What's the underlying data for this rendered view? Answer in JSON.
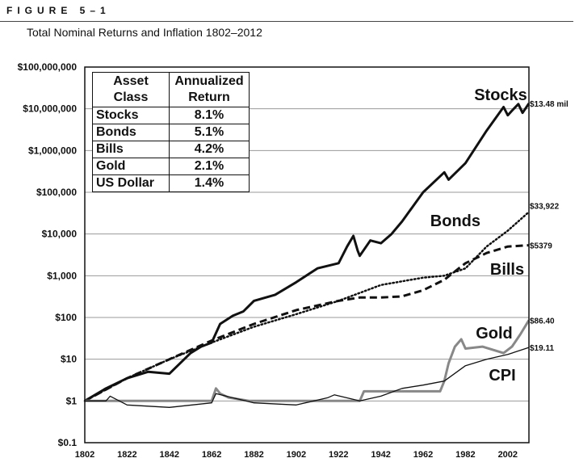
{
  "figure_label": "FIGURE 5–1",
  "figure_title": "Total Nominal Returns and Inflation 1802–2012",
  "chart_data": {
    "type": "line",
    "title": "Total Nominal Returns and Inflation 1802–2012",
    "yscale": "log",
    "ylim": [
      0.1,
      100000000
    ],
    "xlim": [
      1802,
      2012
    ],
    "ytick_values": [
      0.1,
      1,
      10,
      100,
      1000,
      10000,
      100000,
      1000000,
      10000000,
      100000000
    ],
    "ytick_labels": [
      "$0.1",
      "$1",
      "$10",
      "$100",
      "$1,000",
      "$10,000",
      "$100,000",
      "$1,000,000",
      "$10,000,000",
      "$100,000,000"
    ],
    "xtick_values": [
      1802,
      1822,
      1842,
      1862,
      1882,
      1902,
      1922,
      1942,
      1962,
      1982,
      2002
    ],
    "xtick_labels": [
      "1802",
      "1822",
      "1842",
      "1862",
      "1882",
      "1902",
      "1922",
      "1942",
      "1962",
      "1982",
      "2002"
    ],
    "series": [
      {
        "name": "Stocks",
        "end_label": "$13.48 mil",
        "style": "solid-thick",
        "color": "#111111",
        "x": [
          1802,
          1812,
          1822,
          1832,
          1842,
          1852,
          1857,
          1862,
          1866,
          1872,
          1877,
          1882,
          1892,
          1902,
          1912,
          1922,
          1926,
          1929,
          1931,
          1932,
          1937,
          1942,
          1947,
          1952,
          1962,
          1972,
          1974,
          1982,
          1992,
          2000,
          2002,
          2004,
          2007,
          2009,
          2012
        ],
        "y": [
          1,
          2,
          3.5,
          5,
          4.5,
          14,
          20,
          25,
          70,
          110,
          140,
          250,
          350,
          700,
          1500,
          2000,
          5000,
          9000,
          4000,
          3000,
          7000,
          6000,
          10000,
          20000,
          100000,
          300000,
          200000,
          500000,
          3000000,
          11000000,
          7000000,
          9000000,
          13000000,
          8000000,
          13480000
        ]
      },
      {
        "name": "Bonds",
        "end_label": "$33,922",
        "style": "dotted",
        "color": "#111111",
        "x": [
          1802,
          1822,
          1842,
          1862,
          1882,
          1902,
          1922,
          1942,
          1962,
          1972,
          1982,
          1992,
          2002,
          2012
        ],
        "y": [
          1,
          3.5,
          10,
          25,
          60,
          120,
          250,
          600,
          900,
          1000,
          1500,
          5000,
          12000,
          33922
        ]
      },
      {
        "name": "Bills",
        "end_label": "$5379",
        "style": "dashed",
        "color": "#111111",
        "x": [
          1802,
          1822,
          1842,
          1862,
          1882,
          1902,
          1922,
          1932,
          1942,
          1952,
          1962,
          1972,
          1982,
          1992,
          2002,
          2012
        ],
        "y": [
          1,
          3.5,
          10,
          28,
          70,
          150,
          250,
          300,
          300,
          320,
          450,
          800,
          2000,
          3500,
          5000,
          5379
        ]
      },
      {
        "name": "Gold",
        "end_label": "$86.40",
        "style": "solid-gray",
        "color": "#888888",
        "x": [
          1802,
          1862,
          1864,
          1866,
          1870,
          1880,
          1932,
          1934,
          1970,
          1972,
          1974,
          1977,
          1980,
          1982,
          1990,
          2000,
          2004,
          2008,
          2012
        ],
        "y": [
          1,
          1,
          2,
          1.5,
          1.2,
          1,
          1,
          1.7,
          1.7,
          3,
          8,
          20,
          30,
          18,
          20,
          14,
          20,
          40,
          86.4
        ]
      },
      {
        "name": "CPI",
        "end_label": "$19.11",
        "style": "solid-thin",
        "color": "#111111",
        "x": [
          1802,
          1812,
          1814,
          1822,
          1842,
          1862,
          1864,
          1882,
          1902,
          1917,
          1920,
          1932,
          1942,
          1952,
          1962,
          1972,
          1982,
          1992,
          2002,
          2012
        ],
        "y": [
          1,
          1,
          1.3,
          0.8,
          0.7,
          0.9,
          1.5,
          0.9,
          0.8,
          1.2,
          1.4,
          1.0,
          1.3,
          2.0,
          2.4,
          3.0,
          7.0,
          10.0,
          13.0,
          19.11
        ]
      }
    ],
    "legend_table": {
      "headers": [
        "Asset Class",
        "Annualized Return"
      ],
      "rows": [
        {
          "asset": "Stocks",
          "return": "8.1%"
        },
        {
          "asset": "Bonds",
          "return": "5.1%"
        },
        {
          "asset": "Bills",
          "return": "4.2%"
        },
        {
          "asset": "Gold",
          "return": "2.1%"
        },
        {
          "asset": "US Dollar",
          "return": "1.4%"
        }
      ]
    }
  }
}
